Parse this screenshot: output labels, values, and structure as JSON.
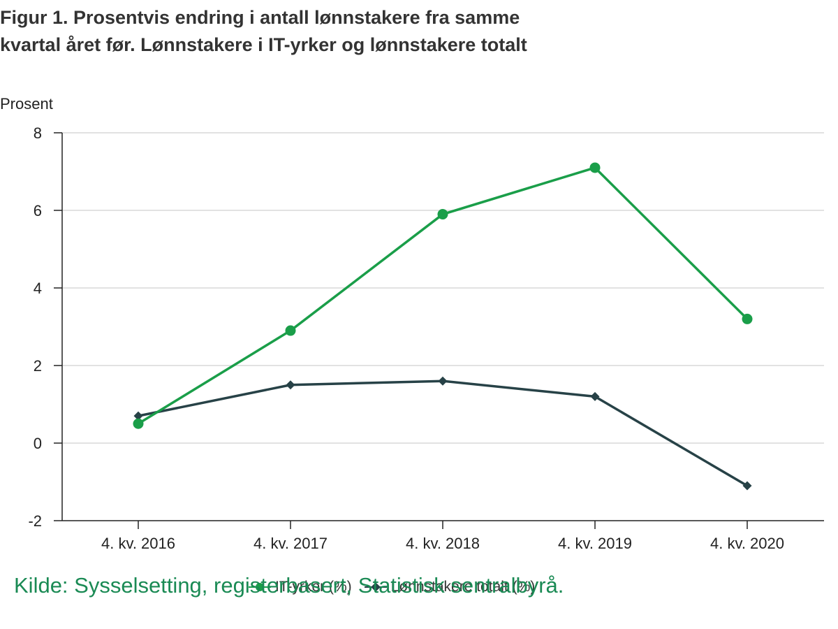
{
  "chart_data": {
    "type": "line",
    "title": "Figur 1. Prosentvis endring i antall lønnstakere fra samme kvartal året før. Lønnstakere i IT-yrker og lønnstakere totalt",
    "ylabel": "Prosent",
    "xlabel": "",
    "categories": [
      "4. kv. 2016",
      "4. kv. 2017",
      "4. kv. 2018",
      "4. kv. 2019",
      "4. kv. 2020"
    ],
    "ylim": [
      -2,
      8
    ],
    "yticks": [
      -2,
      0,
      2,
      4,
      6,
      8
    ],
    "grid": true,
    "legend_position": "bottom",
    "series": [
      {
        "name": "IT-yrker (%)",
        "values": [
          0.5,
          2.9,
          5.9,
          7.1,
          3.2
        ],
        "color": "#1a9e49",
        "marker": "circle"
      },
      {
        "name": "Lønnstakere totalt (%)",
        "values": [
          0.7,
          1.5,
          1.6,
          1.2,
          -1.1
        ],
        "color": "#274247",
        "marker": "diamond"
      }
    ]
  },
  "source": "Kilde: Sysselsetting, registerbasert, Statistisk sentralbyrå."
}
